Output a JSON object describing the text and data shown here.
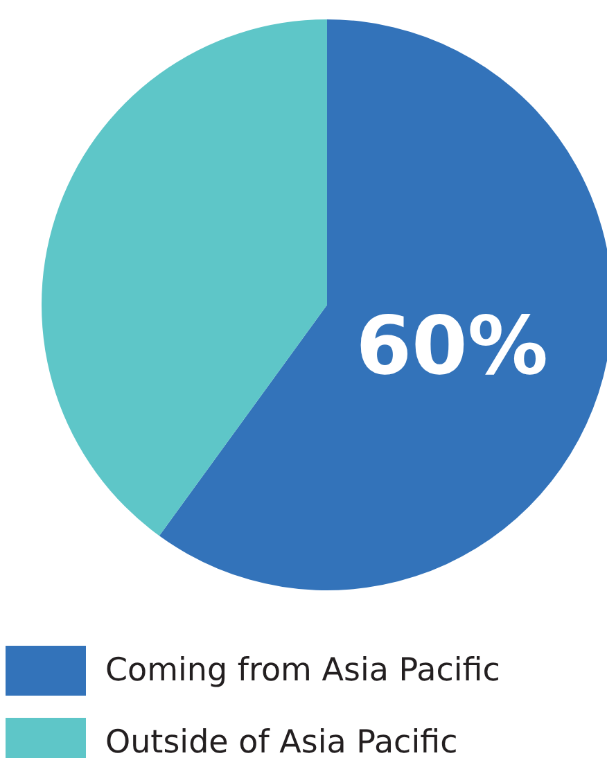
{
  "chart_data": {
    "type": "pie",
    "categories": [
      "Coming from Asia Pacific",
      "Outside of Asia Pacific"
    ],
    "values": [
      60,
      40
    ],
    "colors": [
      "#3373ba",
      "#5ec6c8"
    ],
    "value_labels": [
      "60%",
      null
    ],
    "legend": "bottom"
  }
}
